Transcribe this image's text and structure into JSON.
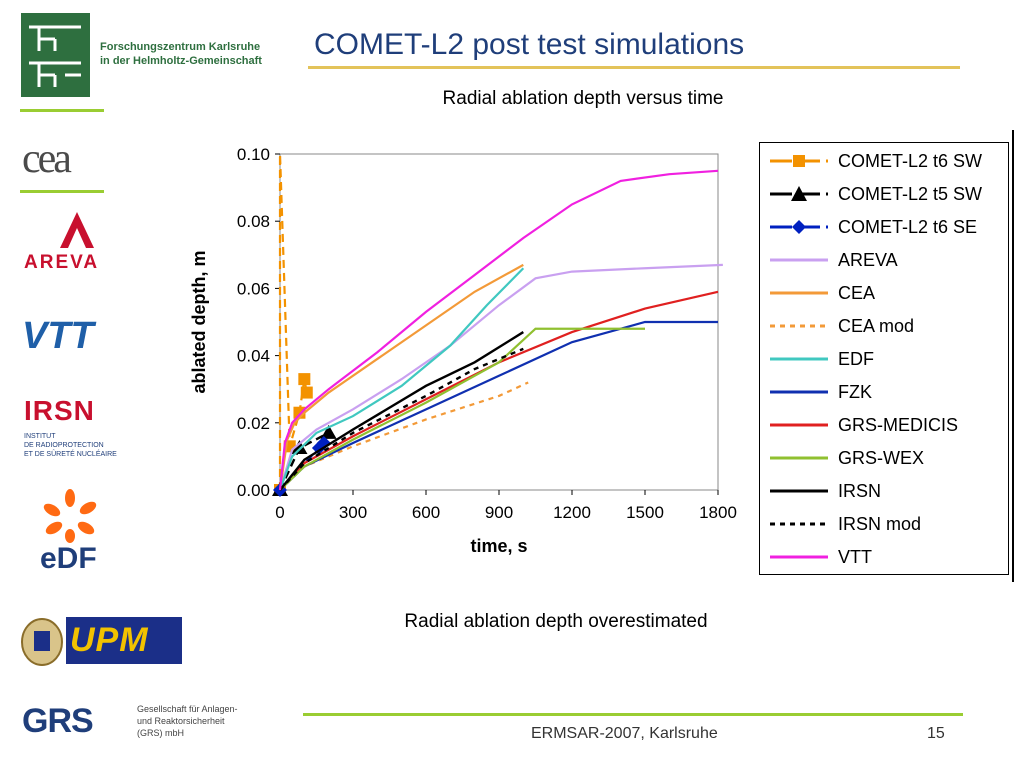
{
  "header": {
    "title": "COMET-L2 post test simulations",
    "org_line1": "Forschungszentrum Karlsruhe",
    "org_line2": "in der Helmholtz-Gemeinschaft"
  },
  "logos": {
    "cea": "cea",
    "areva": "AREVA",
    "vtt": "VTT",
    "irsn": "IRSN",
    "irsn_line1": "INSTITUT",
    "irsn_line2": "DE RADIOPROTECTION",
    "irsn_line3": "ET DE SÛRETÉ NUCLÉAIRE",
    "edf": "eDF",
    "upm": "UPM",
    "grs": "GRS",
    "grs_line1": "Gesellschaft für Anlagen-",
    "grs_line2": "und Reaktorsicherheit",
    "grs_line3": "(GRS) mbH"
  },
  "caption": "Radial ablation depth overestimated",
  "footer": {
    "event": "ERMSAR-2007, Karlsruhe",
    "page": "15"
  },
  "chart_data": {
    "type": "line",
    "title": "Radial ablation depth versus time",
    "xlabel": "time, s",
    "ylabel": "ablated depth, m",
    "xlim": [
      0,
      1800
    ],
    "ylim": [
      0,
      0.1
    ],
    "xticks": [
      "0",
      "300",
      "600",
      "900",
      "1200",
      "1500",
      "1800"
    ],
    "yticks": [
      "0.00",
      "0.02",
      "0.04",
      "0.06",
      "0.08",
      "0.10"
    ],
    "legend_position": "right",
    "series": [
      {
        "name": "COMET-L2 t6 SW",
        "color": "#f39200",
        "dash": "dashed",
        "marker": "square",
        "x": [
          0,
          0,
          40,
          80,
          100,
          110
        ],
        "y": [
          0.0,
          0.1,
          0.013,
          0.023,
          0.033,
          0.029
        ]
      },
      {
        "name": "COMET-L2 t5 SW",
        "color": "#000000",
        "dash": "dashed",
        "marker": "triangle",
        "x": [
          0,
          80,
          200
        ],
        "y": [
          0.0,
          0.0125,
          0.017
        ]
      },
      {
        "name": "COMET-L2 t6 SE",
        "color": "#0020c0",
        "dash": "dashed",
        "marker": "diamond",
        "x": [
          0,
          160,
          180
        ],
        "y": [
          0.0,
          0.0125,
          0.014
        ]
      },
      {
        "name": "AREVA",
        "color": "#c9a0f0",
        "dash": "solid",
        "marker": "none",
        "x": [
          0,
          50,
          150,
          300,
          500,
          700,
          900,
          1050,
          1200,
          1500,
          1820
        ],
        "y": [
          0.0,
          0.012,
          0.018,
          0.024,
          0.033,
          0.043,
          0.055,
          0.063,
          0.065,
          0.066,
          0.067
        ]
      },
      {
        "name": "CEA",
        "color": "#f39a38",
        "dash": "solid",
        "marker": "none",
        "x": [
          0,
          30,
          60,
          100,
          200,
          400,
          600,
          800,
          1000
        ],
        "y": [
          0.0,
          0.015,
          0.02,
          0.023,
          0.029,
          0.039,
          0.049,
          0.059,
          0.067
        ]
      },
      {
        "name": "CEA mod",
        "color": "#f39a38",
        "dash": "dotted",
        "marker": "none",
        "x": [
          0,
          100,
          300,
          600,
          900,
          1020
        ],
        "y": [
          0.0,
          0.007,
          0.013,
          0.021,
          0.028,
          0.032
        ]
      },
      {
        "name": "EDF",
        "color": "#40c8c0",
        "dash": "solid",
        "marker": "none",
        "x": [
          0,
          50,
          150,
          300,
          500,
          700,
          850,
          1000
        ],
        "y": [
          0.0,
          0.01,
          0.017,
          0.022,
          0.031,
          0.043,
          0.055,
          0.066
        ]
      },
      {
        "name": "FZK",
        "color": "#1030b0",
        "dash": "solid",
        "marker": "none",
        "x": [
          0,
          100,
          300,
          600,
          900,
          1200,
          1500,
          1800
        ],
        "y": [
          0.0,
          0.007,
          0.014,
          0.024,
          0.034,
          0.044,
          0.05,
          0.05
        ]
      },
      {
        "name": "GRS-MEDICIS",
        "color": "#e02020",
        "dash": "solid",
        "marker": "none",
        "x": [
          0,
          100,
          300,
          600,
          900,
          1200,
          1500,
          1800
        ],
        "y": [
          0.0,
          0.008,
          0.016,
          0.027,
          0.038,
          0.047,
          0.054,
          0.059
        ]
      },
      {
        "name": "GRS-WEX",
        "color": "#90c030",
        "dash": "solid",
        "marker": "none",
        "x": [
          0,
          100,
          300,
          600,
          900,
          1050,
          1300,
          1500
        ],
        "y": [
          0.0,
          0.007,
          0.015,
          0.026,
          0.038,
          0.048,
          0.048,
          0.048
        ]
      },
      {
        "name": "IRSN",
        "color": "#000000",
        "dash": "solid",
        "marker": "none",
        "x": [
          0,
          100,
          300,
          600,
          800,
          1000
        ],
        "y": [
          0.0,
          0.009,
          0.018,
          0.031,
          0.038,
          0.047
        ]
      },
      {
        "name": "IRSN mod",
        "color": "#000000",
        "dash": "dotted",
        "marker": "none",
        "x": [
          0,
          100,
          300,
          600,
          800,
          1000
        ],
        "y": [
          0.0,
          0.008,
          0.017,
          0.028,
          0.036,
          0.042
        ]
      },
      {
        "name": "VTT",
        "color": "#f020e0",
        "dash": "solid",
        "marker": "none",
        "x": [
          0,
          20,
          50,
          100,
          200,
          400,
          600,
          800,
          1000,
          1200,
          1400,
          1600,
          1800
        ],
        "y": [
          0.0,
          0.014,
          0.02,
          0.024,
          0.03,
          0.041,
          0.053,
          0.064,
          0.075,
          0.085,
          0.092,
          0.094,
          0.095
        ]
      }
    ]
  }
}
